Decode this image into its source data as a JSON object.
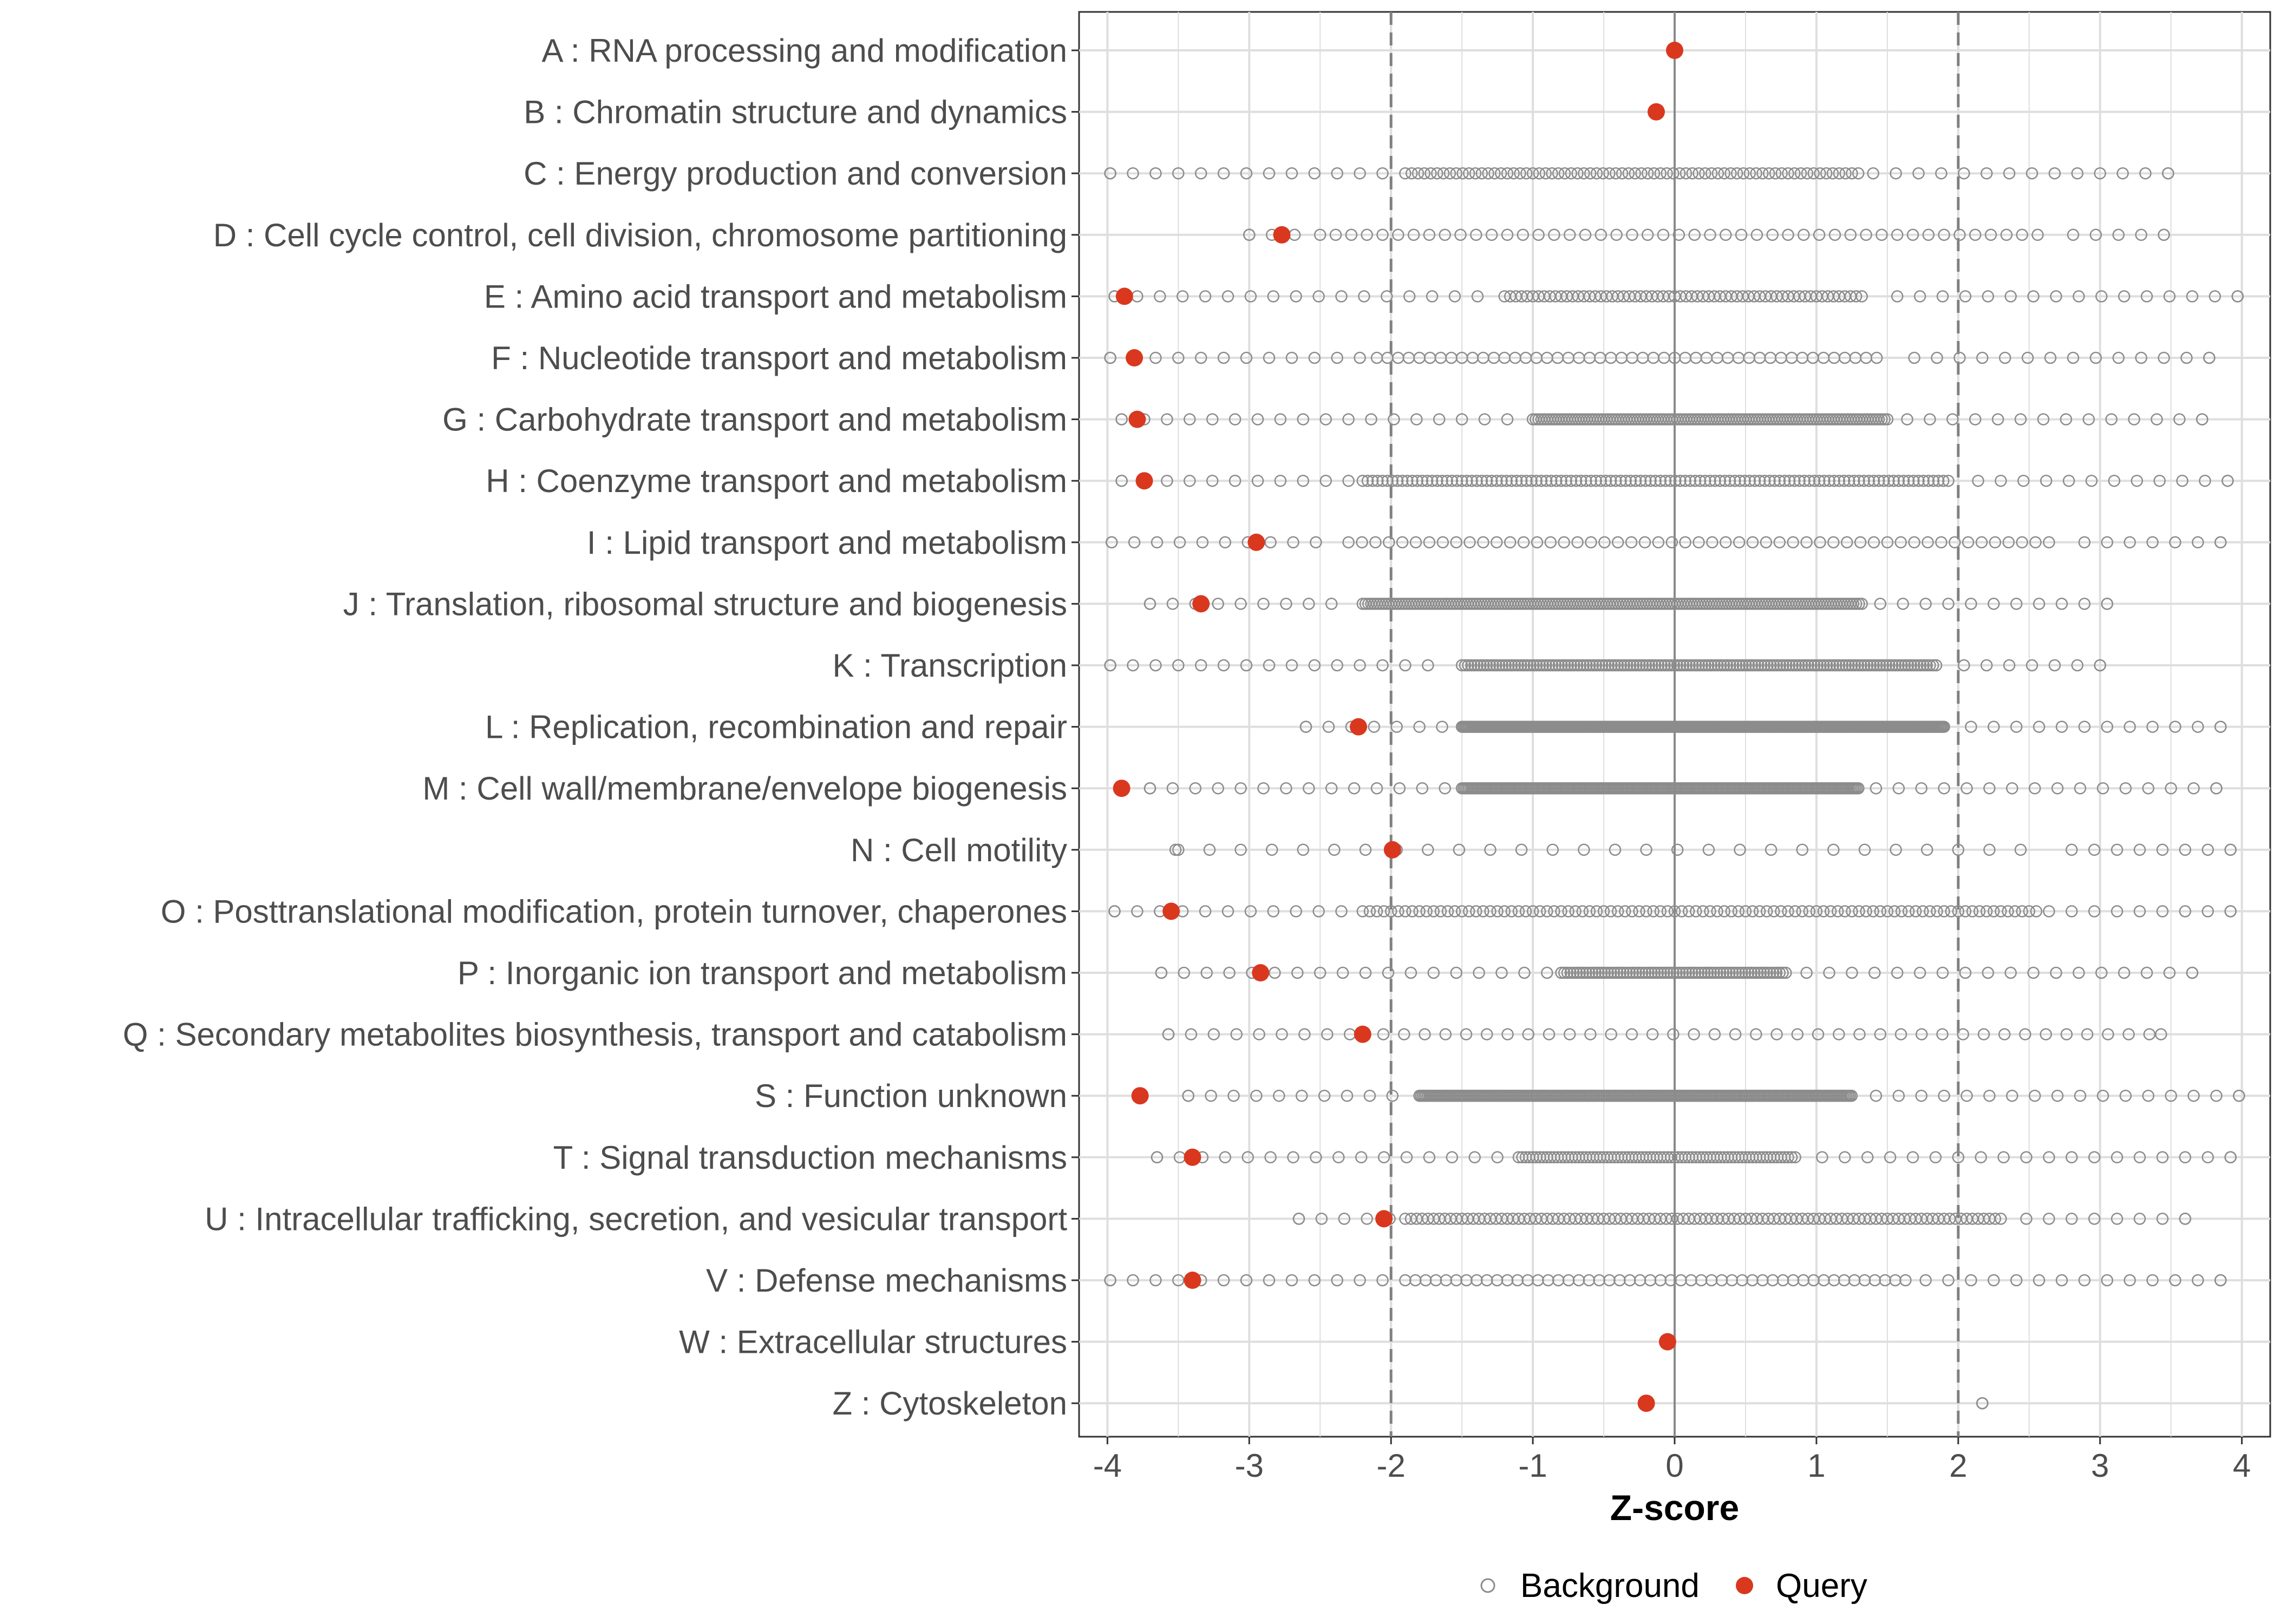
{
  "chart_data": {
    "type": "scatter",
    "xlabel": "Z-score",
    "ylabel": "",
    "xlim": [
      -4.2,
      4.2
    ],
    "x_ticks": [
      "-4",
      "-3",
      "-2",
      "-1",
      "0",
      "1",
      "2",
      "3",
      "4"
    ],
    "reference_lines": [
      -2,
      2
    ],
    "zero_line": 0,
    "grid": true,
    "legend": {
      "position": "bottom",
      "items": [
        {
          "name": "Background",
          "style": "open-circle",
          "color": "#8c8c8c"
        },
        {
          "name": "Query",
          "style": "filled-circle",
          "color": "#d9381e"
        }
      ]
    },
    "categories": [
      "A : RNA processing and modification",
      "B : Chromatin structure and dynamics",
      "C : Energy production and conversion",
      "D : Cell cycle control, cell division, chromosome partitioning",
      "E : Amino acid transport and metabolism",
      "F : Nucleotide transport and metabolism",
      "G : Carbohydrate transport and metabolism",
      "H : Coenzyme transport and metabolism",
      "I : Lipid transport and metabolism",
      "J : Translation, ribosomal structure and biogenesis",
      "K : Transcription",
      "L : Replication, recombination and repair",
      "M : Cell wall/membrane/envelope biogenesis",
      "N : Cell motility",
      "O : Posttranslational modification, protein turnover, chaperones",
      "P : Inorganic ion transport and metabolism",
      "Q : Secondary metabolites biosynthesis, transport and catabolism",
      "S : Function unknown",
      "T : Signal transduction mechanisms",
      "U : Intracellular trafficking, secretion, and vesicular transport",
      "V : Defense mechanisms",
      "W : Extracellular structures",
      "Z : Cytoskeleton"
    ],
    "series": [
      {
        "name": "Query",
        "values": [
          0.0,
          -0.13,
          null,
          -2.77,
          -3.88,
          -3.81,
          -3.79,
          -3.74,
          -2.95,
          -3.34,
          null,
          -2.23,
          -3.9,
          -1.99,
          -3.55,
          -2.92,
          -2.2,
          -3.77,
          -3.4,
          -2.05,
          -3.4,
          -0.05,
          -0.2
        ]
      },
      {
        "name": "Background",
        "ranges": [
          null,
          null,
          {
            "min": -3.98,
            "max": 3.48,
            "dense_from": -1.9,
            "dense_to": 1.3,
            "step": 0.045
          },
          {
            "min": -3.0,
            "max": 3.45,
            "dense_from": -2.5,
            "dense_to": 2.6,
            "step": 0.11
          },
          {
            "min": -3.95,
            "max": 3.97,
            "dense_from": -1.2,
            "dense_to": 1.35,
            "step": 0.04
          },
          {
            "min": -3.98,
            "max": 3.77,
            "dense_from": -2.1,
            "dense_to": 1.45,
            "step": 0.075
          },
          {
            "min": -3.9,
            "max": 3.72,
            "dense_from": -1.0,
            "dense_to": 1.5,
            "step": 0.02
          },
          {
            "min": -3.9,
            "max": 3.9,
            "dense_from": -2.2,
            "dense_to": 1.95,
            "step": 0.035
          },
          {
            "min": -3.97,
            "max": 3.85,
            "dense_from": -2.3,
            "dense_to": 2.65,
            "step": 0.095
          },
          {
            "min": -3.7,
            "max": 3.05,
            "dense_from": -2.2,
            "dense_to": 1.32,
            "step": 0.02
          },
          {
            "min": -3.98,
            "max": 3.0,
            "dense_from": -1.5,
            "dense_to": 1.85,
            "step": 0.022
          },
          {
            "min": -2.6,
            "max": 3.85,
            "dense_from": -1.5,
            "dense_to": 1.9,
            "step": 0.01
          },
          {
            "min": -3.7,
            "max": 3.82,
            "dense_from": -1.5,
            "dense_to": 1.3,
            "step": 0.012
          },
          {
            "min": -3.52,
            "max": 3.92,
            "dense_from": -3.5,
            "dense_to": 2.6,
            "step": 0.22
          },
          {
            "min": -3.95,
            "max": 3.92,
            "dense_from": -2.2,
            "dense_to": 2.55,
            "step": 0.05
          },
          {
            "min": -3.62,
            "max": 3.65,
            "dense_from": -0.8,
            "dense_to": 0.8,
            "step": 0.022
          },
          {
            "min": -3.57,
            "max": 3.43,
            "dense_from": -2.2,
            "dense_to": 3.4,
            "step": 0.146
          },
          {
            "min": -3.43,
            "max": 3.98,
            "dense_from": -1.8,
            "dense_to": 1.25,
            "step": 0.012
          },
          {
            "min": -3.65,
            "max": 3.92,
            "dense_from": -1.1,
            "dense_to": 0.85,
            "step": 0.025
          },
          {
            "min": -2.65,
            "max": 3.6,
            "dense_from": -1.9,
            "dense_to": 2.3,
            "step": 0.04
          },
          {
            "min": -3.98,
            "max": 3.85,
            "dense_from": -1.9,
            "dense_to": 1.65,
            "step": 0.072
          },
          null,
          {
            "min": 2.17,
            "max": 2.17,
            "dense_from": 2.17,
            "dense_to": 2.17,
            "step": 1
          }
        ]
      }
    ]
  }
}
